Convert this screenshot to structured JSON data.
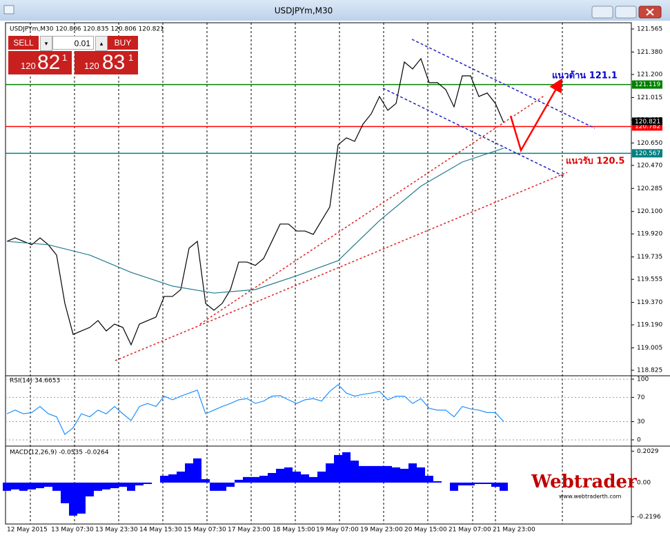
{
  "window": {
    "title": "USDJPYm,M30"
  },
  "trade_panel": {
    "sell": "SELL",
    "lot": "0.01",
    "buy": "BUY",
    "bid": {
      "big": "120",
      "main": "82",
      "small": "1"
    },
    "ask": {
      "big": "120",
      "main": "83",
      "small": "1"
    }
  },
  "chart_header": "USDJPYm,M30 120.806 120.835 120.806 120.821",
  "annotations": [
    "แนวต้าน 121.1",
    "แนวรับ 120.5"
  ],
  "logo": {
    "name": "Webtrader",
    "url": "www.webtraderth.com"
  },
  "chart_data": [
    {
      "type": "line",
      "ylim": [
        118.781,
        121.604
      ],
      "yticks": [
        121.565,
        {
          "value": 121.38,
          "label": "121.380"
        },
        {
          "value": 121.2,
          "label": "121.200"
        },
        121.015,
        120.835,
        {
          "value": 120.65,
          "label": "120.650"
        },
        {
          "value": 120.47,
          "label": "120.470"
        },
        120.285,
        {
          "value": 120.1,
          "label": "120.100"
        },
        {
          "value": 119.92,
          "label": "119.920"
        },
        119.735,
        119.555,
        {
          "value": 119.37,
          "label": "119.370"
        },
        {
          "value": 119.19,
          "label": "119.190"
        },
        119.005,
        118.825
      ],
      "x_labels": [
        "12 May 2015",
        "13 May 07:30",
        "13 May 23:30",
        "14 May 15:30",
        "15 May 07:30",
        "17 May 23:00",
        "18 May 15:00",
        "19 May 07:00",
        "19 May 23:00",
        "20 May 15:00",
        "21 May 07:00",
        "21 May 23:00"
      ],
      "series": [
        {
          "color": "#000000",
          "values": [
            119.86,
            119.888,
            119.86,
            119.833,
            119.888,
            119.833,
            119.75,
            119.362,
            119.113,
            119.141,
            119.169,
            119.224,
            119.141,
            119.196,
            119.169,
            119.03,
            119.196,
            119.224,
            119.252,
            119.418,
            119.418,
            119.473,
            119.805,
            119.86,
            119.362,
            119.307,
            119.362,
            119.473,
            119.694,
            119.694,
            119.667,
            119.722,
            119.86,
            119.999,
            119.999,
            119.943,
            119.943,
            119.916,
            120.027,
            120.137,
            120.635,
            120.691,
            120.663,
            120.801,
            120.884,
            121.023,
            120.912,
            120.967,
            121.3,
            121.244,
            121.327,
            121.134,
            121.134,
            121.078,
            120.94,
            121.189,
            121.189,
            121.023,
            121.051,
            120.967,
            120.813
          ]
        },
        {
          "color": "#1f7a8c",
          "values": [
            119.86,
            119.833,
            119.75,
            119.611,
            119.501,
            119.445,
            119.473,
            119.584,
            119.705,
            120.027,
            120.303,
            120.497,
            120.608
          ]
        }
      ],
      "price_levels": [
        {
          "value": 121.119,
          "color": "#008000"
        },
        {
          "value": 120.782,
          "color": "#ff0000"
        },
        {
          "value": 120.567,
          "color": "#008080"
        }
      ],
      "last_price": 120.821
    },
    {
      "type": "line",
      "title": "RSI(14) 34.6653",
      "ylim": [
        -8,
        104.5
      ],
      "yticks": [
        100,
        70,
        30,
        0
      ],
      "series": [
        {
          "color": "#1e90ff",
          "values": [
            43,
            49,
            43,
            45,
            55,
            43,
            38,
            9,
            20,
            43,
            38,
            49,
            43,
            55,
            43,
            32,
            55,
            60,
            55,
            72,
            66,
            72,
            77,
            82,
            43,
            49,
            55,
            60,
            66,
            68,
            60,
            64,
            72,
            73,
            66,
            60,
            66,
            68,
            64,
            80,
            91,
            77,
            72,
            75,
            77,
            80,
            66,
            72,
            72,
            60,
            68,
            52,
            49,
            49,
            38,
            55,
            51,
            49,
            45,
            45,
            30
          ]
        }
      ]
    },
    {
      "type": "bar",
      "title": "MACD(12,26,9) -0.0535 -0.0264",
      "ylim": [
        -0.267,
        0.231
      ],
      "yticks": [
        0.2029,
        {
          "value": 0,
          "label": "0.00"
        },
        -0.2196
      ],
      "color": "#0000ff",
      "values": [
        -0.053,
        -0.044,
        -0.053,
        -0.044,
        -0.036,
        -0.027,
        -0.053,
        -0.133,
        -0.213,
        -0.2,
        -0.089,
        -0.053,
        -0.044,
        -0.036,
        -0.027,
        -0.053,
        -0.018,
        -0.009,
        0,
        0.044,
        0.053,
        0.071,
        0.124,
        0.156,
        0.022,
        -0.053,
        -0.053,
        -0.027,
        0.018,
        0.036,
        0.036,
        0.044,
        0.062,
        0.089,
        0.098,
        0.071,
        0.053,
        0.036,
        0.071,
        0.124,
        0.178,
        0.196,
        0.142,
        0.107,
        0.107,
        0.107,
        0.107,
        0.098,
        0.089,
        0.124,
        0.098,
        0.044,
        0.009,
        0,
        -0.053,
        -0.018,
        -0.018,
        -0.009,
        -0.009,
        -0.027,
        -0.053
      ]
    }
  ]
}
